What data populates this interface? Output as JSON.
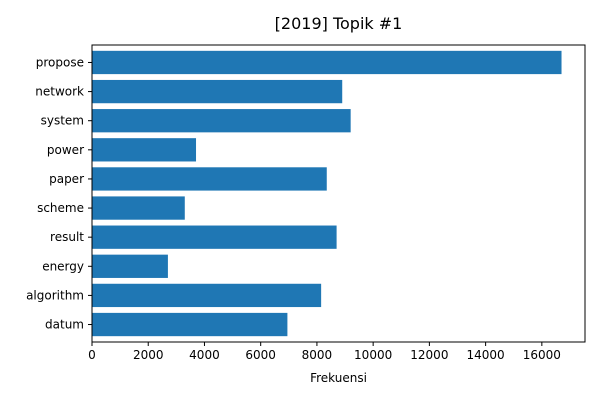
{
  "chart_data": {
    "type": "bar",
    "orientation": "horizontal",
    "title": "[2019] Topik #1",
    "xlabel": "Frekuensi",
    "ylabel": "",
    "categories": [
      "propose",
      "network",
      "system",
      "power",
      "paper",
      "scheme",
      "result",
      "energy",
      "algorithm",
      "datum"
    ],
    "values": [
      16700,
      8900,
      9200,
      3700,
      8350,
      3300,
      8700,
      2700,
      8150,
      6950
    ],
    "xlim": [
      0,
      17535
    ],
    "xticks": [
      0,
      2000,
      4000,
      6000,
      8000,
      10000,
      12000,
      14000,
      16000
    ],
    "grid": false,
    "bar_color": "#1f77b4"
  }
}
